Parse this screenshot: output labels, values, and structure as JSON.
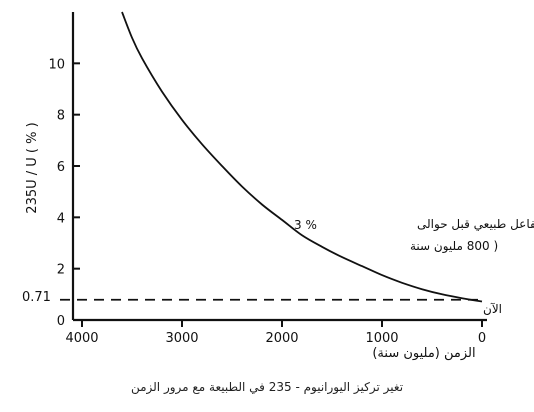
{
  "chart_data": {
    "type": "line",
    "xlabel": "الزمن (مليون سنة)",
    "ylabel": "235U / U ( % )",
    "xlim": [
      4000,
      0
    ],
    "ylim": [
      0,
      12
    ],
    "x_ticks": [
      "4000",
      "3000",
      "2000",
      "1000",
      "0"
    ],
    "y_ticks": [
      "0",
      "2",
      "4",
      "6",
      "8",
      "10"
    ],
    "series": [
      {
        "x": [
          3600,
          3500,
          3400,
          3200,
          3000,
          2800,
          2600,
          2400,
          2200,
          2000,
          1800,
          1600,
          1400,
          1200,
          1000,
          800,
          600,
          400,
          200,
          0
        ],
        "y": [
          12.0,
          11.0,
          10.2,
          8.9,
          7.8,
          6.85,
          6.0,
          5.2,
          4.5,
          3.9,
          3.3,
          2.85,
          2.45,
          2.1,
          1.75,
          1.45,
          1.2,
          1.0,
          0.85,
          0.72
        ]
      }
    ],
    "reference_line": {
      "y": 0.71,
      "label": "0.71",
      "style": "dashed"
    },
    "annotations": [
      {
        "text": "* مفاعل طبيعي قبل حوالى",
        "x": 2000,
        "y": 3.0
      },
      {
        "text": "3 %",
        "x": 2000,
        "y": 3.0
      },
      {
        "text": "( 800 مليون سنة",
        "x": 2000,
        "y": 3.0
      },
      {
        "text": "الآن",
        "x": 0,
        "y": 0.71
      }
    ],
    "grid": false,
    "caption": "تغير تركيز اليورانيوم - 235 في الطبيعة مع مرور الزمن"
  }
}
